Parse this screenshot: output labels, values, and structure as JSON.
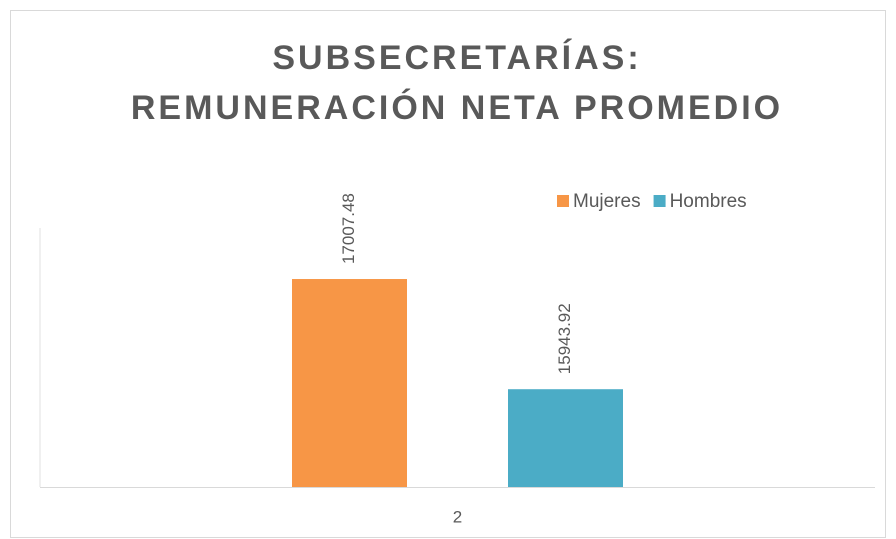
{
  "chart_data": {
    "type": "bar",
    "title": [
      "SUBSECRETARÍAS:",
      "REMUNERACIÓN NETA PROMEDIO"
    ],
    "categories": [
      "2"
    ],
    "series": [
      {
        "name": "Mujeres",
        "color": "#f79646",
        "values": [
          17007.48
        ]
      },
      {
        "name": "Hombres",
        "color": "#4bacc6",
        "values": [
          15943.92
        ]
      }
    ],
    "ylim": [
      15000,
      17500
    ],
    "legend": "top-right"
  }
}
